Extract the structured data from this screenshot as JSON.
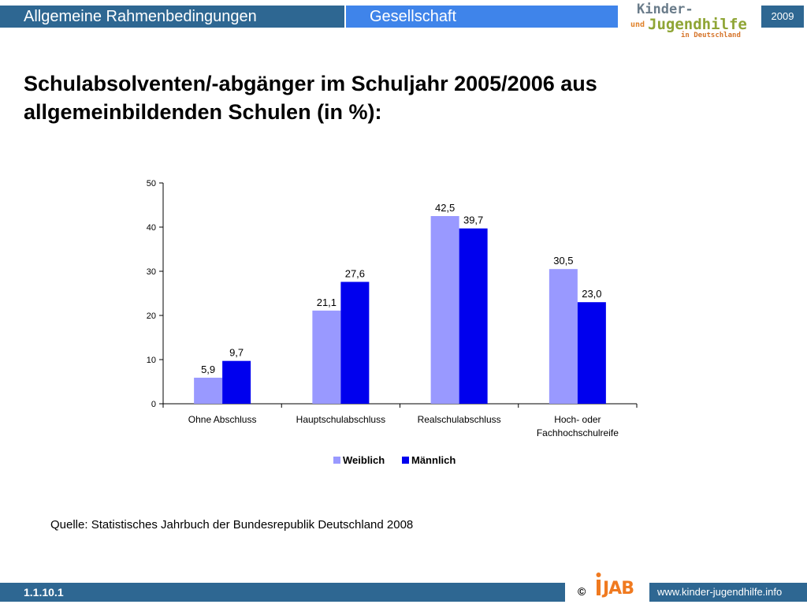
{
  "header": {
    "left_label": "Allgemeine Rahmenbedingungen",
    "mid_label": "Gesellschaft",
    "year": "2009",
    "logo": {
      "line1": "Kinder-",
      "line2a": "und",
      "line2": "Jugendhilfe",
      "line3": "in Deutschland"
    }
  },
  "title": "Schulabsolventen/-abgänger im Schuljahr 2005/2006 aus allgemeinbildenden Schulen (in %):",
  "chart_data": {
    "type": "bar",
    "categories": [
      "Ohne Abschluss",
      "Hauptschulabschluss",
      "Realschulabschluss",
      "Hoch- oder Fachhochschulreife"
    ],
    "series": [
      {
        "name": "Weiblich",
        "values": [
          5.9,
          21.1,
          42.5,
          30.5
        ],
        "labels": [
          "5,9",
          "21,1",
          "42,5",
          "30,5"
        ],
        "color": "#9999ff"
      },
      {
        "name": "Männlich",
        "values": [
          9.7,
          27.6,
          39.7,
          23.0
        ],
        "labels": [
          "9,7",
          "27,6",
          "39,7",
          "23,0"
        ],
        "color": "#0000ee"
      }
    ],
    "ylim": [
      0,
      50
    ],
    "yticks": [
      0,
      10,
      20,
      30,
      40,
      50
    ],
    "legend_position": "bottom",
    "grid": false
  },
  "source": "Quelle: Statistisches Jahrbuch der Bundesrepublik Deutschland 2008",
  "footer": {
    "slide_number": "1.1.10.1",
    "copyright": "©",
    "org_logo": "IJAB",
    "url": "www.kinder-jugendhilfe.info"
  }
}
